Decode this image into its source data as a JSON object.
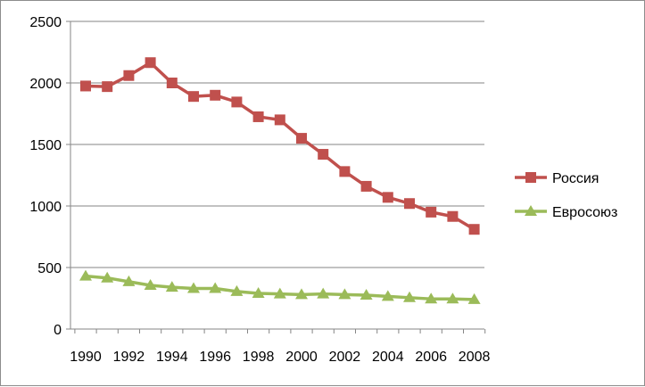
{
  "chart_data": {
    "type": "line",
    "title": "",
    "xlabel": "",
    "ylabel": "",
    "x": [
      1990,
      1991,
      1992,
      1993,
      1994,
      1995,
      1996,
      1997,
      1998,
      1999,
      2000,
      2001,
      2002,
      2003,
      2004,
      2005,
      2006,
      2007,
      2008
    ],
    "x_tick_labels": [
      "1990",
      "1992",
      "1994",
      "1996",
      "1998",
      "2000",
      "2002",
      "2004",
      "2006",
      "2008"
    ],
    "y_tick_labels": [
      "0",
      "500",
      "1000",
      "1500",
      "2000",
      "2500"
    ],
    "ylim": [
      0,
      2500
    ],
    "y_ticks": [
      0,
      500,
      1000,
      1500,
      2000,
      2500
    ],
    "grid": "horizontal",
    "legend_position": "right",
    "series": [
      {
        "name": "Россия",
        "color": "#c0504d",
        "marker": "square",
        "values": [
          1975,
          1970,
          2060,
          2165,
          2000,
          1890,
          1900,
          1845,
          1725,
          1700,
          1550,
          1420,
          1280,
          1160,
          1070,
          1020,
          950,
          915,
          810
        ]
      },
      {
        "name": "Евросоюз",
        "color": "#9bbb59",
        "marker": "triangle",
        "values": [
          430,
          415,
          385,
          355,
          340,
          330,
          330,
          305,
          290,
          285,
          280,
          285,
          280,
          275,
          265,
          255,
          245,
          245,
          240
        ]
      }
    ]
  }
}
